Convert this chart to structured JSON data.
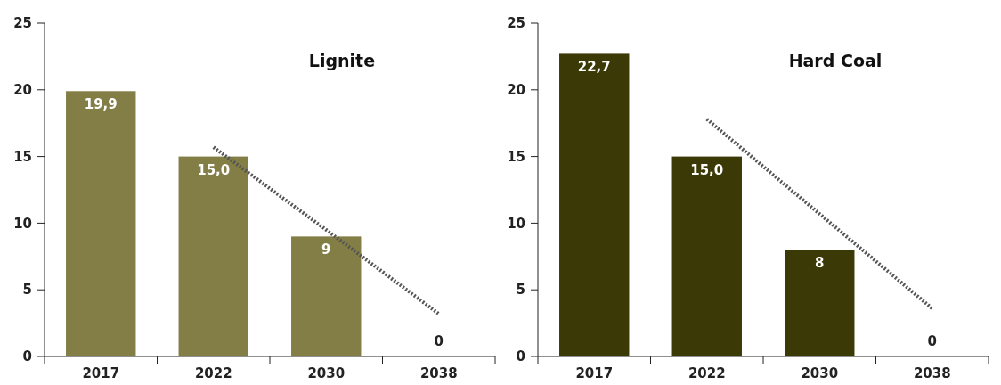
{
  "chart_data": [
    {
      "type": "bar",
      "title": "Lignite",
      "categories": [
        "2017",
        "2022",
        "2030",
        "2038"
      ],
      "ylim": [
        0,
        25
      ],
      "yticks": [
        0,
        5,
        10,
        15,
        20,
        25
      ],
      "grid": false,
      "series": [
        {
          "color": "#837e45",
          "values": [
            19.9,
            15.0,
            9,
            0
          ],
          "value_labels": [
            "19,9",
            "15,0",
            "9",
            "0"
          ]
        },
        {
          "type": "line",
          "color": "#555555",
          "line_style": "dotted",
          "marker": "none",
          "values": [
            null,
            15.7,
            9.5,
            3.2
          ]
        }
      ]
    },
    {
      "type": "bar",
      "title": "Hard Coal",
      "categories": [
        "2017",
        "2022",
        "2030",
        "2038"
      ],
      "ylim": [
        0,
        25
      ],
      "yticks": [
        0,
        5,
        10,
        15,
        20,
        25
      ],
      "grid": false,
      "series": [
        {
          "color": "#3b3905",
          "values": [
            22.7,
            15.0,
            8,
            0
          ],
          "value_labels": [
            "22,7",
            "15,0",
            "8",
            "0"
          ]
        },
        {
          "type": "line",
          "color": "#555555",
          "line_style": "dotted",
          "marker": "none",
          "values": [
            null,
            17.8,
            10.7,
            3.6
          ]
        }
      ]
    }
  ]
}
